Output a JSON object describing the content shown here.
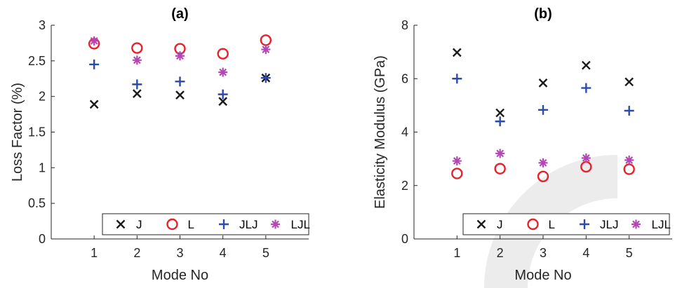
{
  "colors": {
    "J": "#1a1a1a",
    "L": "#e8202a",
    "JLJ": "#2c4aa8",
    "LJL": "#b546b5",
    "axis": "#262626",
    "watermark": "#ececec"
  },
  "chart_data": [
    {
      "type": "scatter",
      "title": "(a)",
      "xlabel": "Mode No",
      "ylabel": "Loss Factor (%)",
      "x": [
        1,
        2,
        3,
        4,
        5
      ],
      "xlim": [
        0,
        6
      ],
      "xticks": [
        "1",
        "2",
        "3",
        "4",
        "5"
      ],
      "ylim": [
        0,
        3
      ],
      "yticks": [
        "0",
        "0.5",
        "1",
        "1.5",
        "2",
        "2.5",
        "3"
      ],
      "legend_position": "bottom",
      "series": [
        {
          "name": "J",
          "marker": "x",
          "values": [
            1.89,
            2.04,
            2.02,
            1.93,
            2.26
          ]
        },
        {
          "name": "L",
          "marker": "o",
          "values": [
            2.74,
            2.68,
            2.67,
            2.6,
            2.79
          ]
        },
        {
          "name": "JLJ",
          "marker": "+",
          "values": [
            2.45,
            2.17,
            2.21,
            2.03,
            2.26
          ]
        },
        {
          "name": "LJL",
          "marker": "*",
          "values": [
            2.78,
            2.51,
            2.57,
            2.34,
            2.66
          ]
        }
      ]
    },
    {
      "type": "scatter",
      "title": "(b)",
      "xlabel": "Mode No",
      "ylabel": "Elasticity Modulus (GPa)",
      "x": [
        1,
        2,
        3,
        4,
        5
      ],
      "xlim": [
        0,
        6
      ],
      "xticks": [
        "1",
        "2",
        "3",
        "4",
        "5"
      ],
      "ylim": [
        0,
        8
      ],
      "yticks": [
        "0",
        "2",
        "4",
        "6",
        "8"
      ],
      "legend_position": "bottom",
      "series": [
        {
          "name": "J",
          "marker": "x",
          "values": [
            6.98,
            4.72,
            5.84,
            6.5,
            5.88
          ]
        },
        {
          "name": "L",
          "marker": "o",
          "values": [
            2.45,
            2.63,
            2.34,
            2.7,
            2.61
          ]
        },
        {
          "name": "JLJ",
          "marker": "+",
          "values": [
            6.0,
            4.4,
            4.83,
            5.65,
            4.8
          ]
        },
        {
          "name": "LJL",
          "marker": "*",
          "values": [
            2.92,
            3.2,
            2.85,
            3.03,
            2.95
          ]
        }
      ]
    }
  ]
}
